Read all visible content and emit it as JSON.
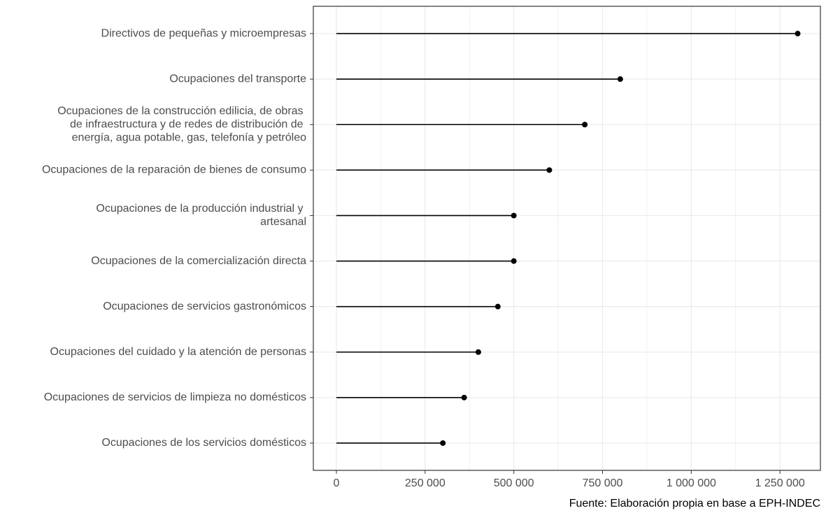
{
  "chart_data": {
    "type": "lollipop",
    "categories": [
      "Directivos de pequeñas y microempresas",
      "Ocupaciones del transporte",
      "Ocupaciones de la construcción edilicia, de obras\nde infraestructura y de redes de distribución de\nenergía, agua potable, gas, telefonía y petróleo",
      "Ocupaciones de la reparación de bienes de consumo",
      "Ocupaciones de la producción industrial y\nartesanal",
      "Ocupaciones de la comercialización directa",
      "Ocupaciones de servicios gastronómicos",
      "Ocupaciones del cuidado y la atención de personas",
      "Ocupaciones de servicios de limpieza no domésticos",
      "Ocupaciones de los servicios domésticos"
    ],
    "values": [
      1300000,
      800000,
      700000,
      600000,
      500000,
      500000,
      455000,
      400000,
      360000,
      300000
    ],
    "color": "#000000",
    "xlim": [
      -65000,
      1364000
    ],
    "xticks": [
      0,
      {
        "value": 250000,
        "label": "250 000"
      },
      {
        "value": 500000,
        "label": "500 000"
      },
      {
        "value": 750000,
        "label": "750 000"
      },
      {
        "value": 1000000,
        "label": "1 000 000"
      },
      {
        "value": 1250000,
        "label": "1 250 000"
      }
    ],
    "grid": true,
    "caption": "Fuente: Elaboración propia en base a EPH-INDEC"
  }
}
